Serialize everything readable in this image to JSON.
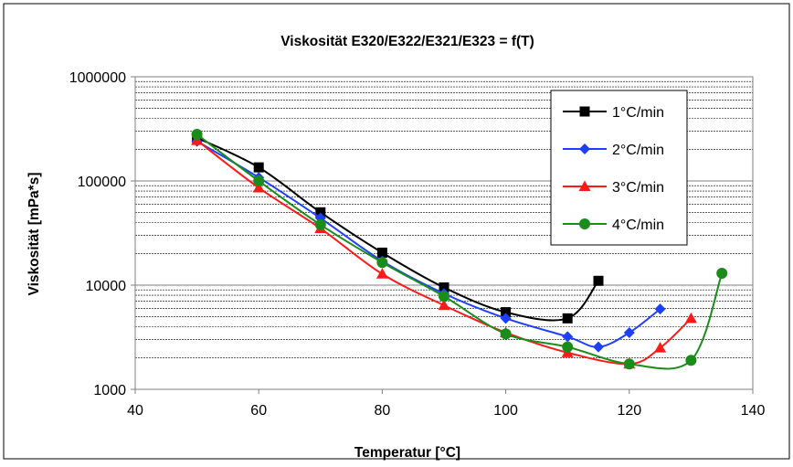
{
  "chart_data": {
    "type": "line",
    "title": "Viskosität E320/E322/E321/E323 = f(T)",
    "xlabel": "Temperatur [°C]",
    "ylabel": "Viskosität [mPa*s]",
    "xlim": [
      40,
      140
    ],
    "ylim": [
      1000,
      1000000
    ],
    "yscale": "log",
    "xticks": [
      40,
      60,
      80,
      100,
      120,
      140
    ],
    "yticks": [
      1000,
      10000,
      100000,
      1000000
    ],
    "xtick_labels": [
      "40",
      "60",
      "80",
      "100",
      "120",
      "140"
    ],
    "ytick_labels": [
      "1000",
      "10000",
      "100000",
      "1000000"
    ],
    "grid": "horizontal-minor",
    "legend_position": "top-right",
    "series": [
      {
        "name": "1°C/min",
        "color": "#000000",
        "marker": "square",
        "x": [
          50,
          60,
          70,
          80,
          90,
          100,
          110,
          115
        ],
        "y": [
          260000,
          135000,
          50000,
          20500,
          9500,
          5500,
          4800,
          11000
        ]
      },
      {
        "name": "2°C/min",
        "color": "#1f3fff",
        "marker": "diamond",
        "x": [
          50,
          60,
          70,
          80,
          90,
          100,
          110,
          115,
          120,
          125
        ],
        "y": [
          240000,
          108000,
          44000,
          17000,
          8300,
          4800,
          3200,
          2550,
          3500,
          5900
        ]
      },
      {
        "name": "3°C/min",
        "color": "#ff1a1a",
        "marker": "triangle",
        "x": [
          50,
          60,
          70,
          80,
          90,
          100,
          110,
          120,
          125,
          130
        ],
        "y": [
          245000,
          86000,
          35000,
          12800,
          6400,
          3500,
          2250,
          1750,
          2500,
          4800
        ]
      },
      {
        "name": "4°C/min",
        "color": "#1a8c1a",
        "marker": "circle",
        "x": [
          50,
          60,
          70,
          80,
          90,
          100,
          110,
          120,
          130,
          135
        ],
        "y": [
          280000,
          100000,
          38000,
          16500,
          7800,
          3400,
          2550,
          1750,
          1900,
          13000
        ]
      }
    ]
  }
}
